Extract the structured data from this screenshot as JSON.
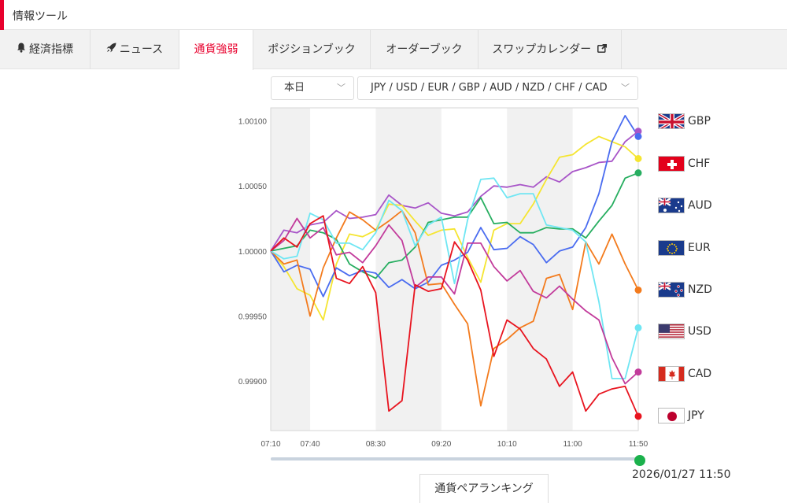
{
  "header": {
    "title": "情報ツール"
  },
  "tabs": [
    {
      "label": "経済指標",
      "icon": "bell-icon"
    },
    {
      "label": "ニュース",
      "icon": "rocket-icon"
    },
    {
      "label": "通貨強弱",
      "icon": "",
      "active": true
    },
    {
      "label": "ポジションブック",
      "icon": ""
    },
    {
      "label": "オーダーブック",
      "icon": ""
    },
    {
      "label": "スワップカレンダー",
      "icon": "external-link-icon"
    }
  ],
  "controls": {
    "period_select": "本日",
    "currency_select": "JPY / USD / EUR / GBP / AUD / NZD / CHF / CAD"
  },
  "colors": {
    "accent": "#e8002d",
    "shade": "#f1f1f1"
  },
  "chart_data": {
    "type": "line",
    "x": [
      "07:10",
      "07:20",
      "07:30",
      "07:40",
      "07:50",
      "08:00",
      "08:10",
      "08:20",
      "08:30",
      "08:40",
      "08:50",
      "09:00",
      "09:10",
      "09:20",
      "09:30",
      "09:40",
      "09:50",
      "10:00",
      "10:10",
      "10:20",
      "10:30",
      "10:40",
      "10:50",
      "11:00",
      "11:10",
      "11:20",
      "11:30",
      "11:40",
      "11:50"
    ],
    "x_ticks": [
      "07:10",
      "07:40",
      "08:30",
      "09:20",
      "10:10",
      "11:00",
      "11:50"
    ],
    "y_ticks": [
      "1.00100",
      "1.00050",
      "1.00000",
      "0.99950",
      "0.99900"
    ],
    "ylim": [
      0.99862,
      1.0011
    ],
    "shaded_bands": [
      [
        "07:10",
        "07:40"
      ],
      [
        "08:30",
        "09:20"
      ],
      [
        "10:10",
        "11:00"
      ]
    ],
    "series": [
      {
        "name": "GBP",
        "color": "#a855c8",
        "values": [
          1.0,
          1.00016,
          1.00014,
          1.0002,
          1.00022,
          1.00031,
          1.00025,
          1.00026,
          1.00028,
          1.00043,
          1.00035,
          1.00033,
          1.00037,
          1.00029,
          1.00027,
          1.0003,
          1.00042,
          1.0005,
          1.00049,
          1.00051,
          1.00049,
          1.00057,
          1.00053,
          1.00061,
          1.00064,
          1.00068,
          1.00069,
          1.00084,
          1.00092
        ]
      },
      {
        "name": "CHF",
        "color": "#f5e531",
        "values": [
          1.0,
          0.99988,
          0.99971,
          0.99966,
          0.99947,
          0.9999,
          1.00013,
          1.00011,
          1.00016,
          1.00036,
          1.00035,
          1.00023,
          1.00012,
          1.00016,
          1.00017,
          0.99995,
          0.99976,
          1.00016,
          1.00021,
          1.00021,
          1.00036,
          1.00055,
          1.00072,
          1.00074,
          1.00082,
          1.00088,
          1.00084,
          1.0008,
          1.00071
        ]
      },
      {
        "name": "AUD",
        "color": "#27ae60",
        "values": [
          1.0,
          1.00002,
          1.00004,
          1.00016,
          1.00014,
          1.00009,
          0.9999,
          0.99984,
          0.99979,
          0.99991,
          0.99993,
          1.00003,
          1.00022,
          1.00024,
          1.00026,
          1.00026,
          1.00041,
          1.00021,
          1.00022,
          1.00014,
          1.00014,
          1.00018,
          1.00017,
          1.00017,
          1.0001,
          1.00023,
          1.00035,
          1.00056,
          1.0006
        ]
      },
      {
        "name": "EUR",
        "color": "#4a6cf0",
        "values": [
          1.0,
          0.99984,
          0.99989,
          0.99986,
          0.99965,
          0.99987,
          0.99981,
          0.99985,
          0.99983,
          0.99972,
          0.99978,
          0.99971,
          0.99976,
          0.99989,
          0.99993,
          0.99999,
          1.00018,
          1.00001,
          1.00002,
          1.00011,
          1.00005,
          0.99991,
          1.0,
          1.00003,
          1.00018,
          1.00044,
          1.00084,
          1.00104,
          1.00088
        ]
      },
      {
        "name": "NZD",
        "color": "#f37b1d",
        "values": [
          1.0,
          0.9999,
          0.99993,
          0.9995,
          0.99987,
          1.0001,
          1.0003,
          1.00024,
          1.00016,
          1.00023,
          1.00031,
          1.00014,
          0.99974,
          0.99975,
          0.99959,
          0.99944,
          0.99881,
          0.99925,
          0.99932,
          0.99941,
          0.99946,
          0.99979,
          0.99982,
          0.99955,
          1.00007,
          0.9999,
          1.00013,
          0.9999,
          0.9997
        ]
      },
      {
        "name": "USD",
        "color": "#6fe6f3",
        "values": [
          1.0,
          0.99994,
          0.99996,
          1.00029,
          1.00024,
          1.00006,
          1.00006,
          1.00001,
          1.00014,
          1.00039,
          1.00031,
          1.00004,
          1.0002,
          1.00026,
          0.99975,
          1.00024,
          1.00055,
          1.00056,
          1.00041,
          1.00044,
          1.00044,
          1.0002,
          1.00018,
          1.00016,
          1.00007,
          0.99961,
          0.99902,
          0.99902,
          0.99941
        ]
      },
      {
        "name": "CAD",
        "color": "#c23b9b",
        "values": [
          1.0,
          1.00008,
          1.00025,
          1.0001,
          1.00018,
          0.99997,
          0.99999,
          0.99991,
          1.00004,
          1.0002,
          1.00008,
          0.99972,
          0.9998,
          0.9998,
          0.99967,
          1.00006,
          1.00006,
          0.99988,
          0.99977,
          0.99985,
          0.99969,
          0.99964,
          0.99973,
          0.99963,
          0.99954,
          0.99947,
          0.99918,
          0.99898,
          0.99907
        ]
      },
      {
        "name": "JPY",
        "color": "#e8141f",
        "values": [
          1.0,
          1.0001,
          1.00003,
          1.00021,
          1.00027,
          0.99979,
          0.99975,
          0.99988,
          0.99968,
          0.99877,
          0.99885,
          0.99974,
          0.99969,
          0.99971,
          1.00007,
          0.99993,
          0.9997,
          0.99919,
          0.99947,
          0.9994,
          0.99925,
          0.99917,
          0.99896,
          0.99907,
          0.99877,
          0.9989,
          0.99894,
          0.99896,
          0.99873
        ]
      }
    ],
    "legend": [
      "GBP",
      "CHF",
      "AUD",
      "EUR",
      "NZD",
      "USD",
      "CAD",
      "JPY"
    ],
    "legend_position": "right"
  },
  "timeline": {
    "progress": 1.0,
    "current_time": "2026/01/27 11:50"
  },
  "ranking_button": "通貨ペアランキング"
}
